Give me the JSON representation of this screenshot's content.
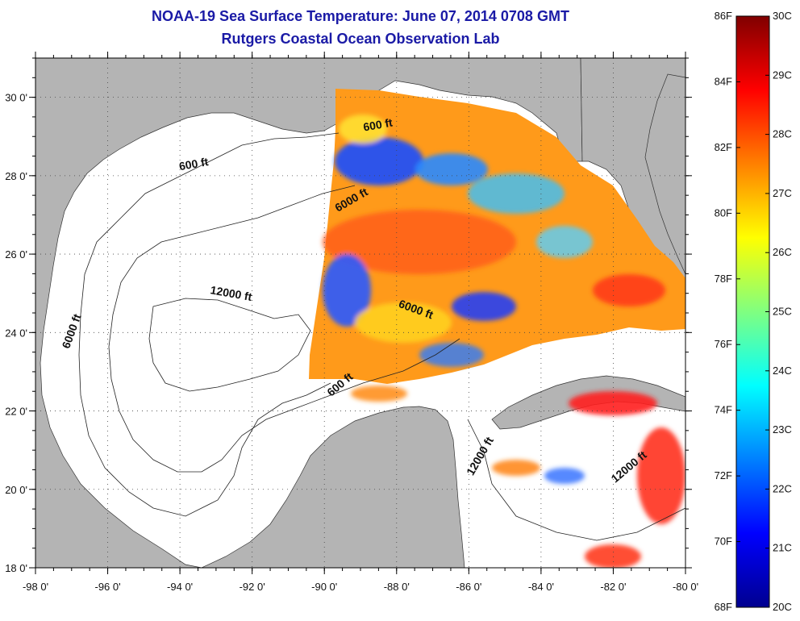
{
  "header": {
    "title": "NOAA-19 Sea Surface Temperature:  June 07, 2014 0708 GMT",
    "subtitle": "Rutgers Coastal Ocean Observation Lab"
  },
  "map": {
    "lon_range": [
      -98,
      -80
    ],
    "lat_range": [
      18,
      31
    ],
    "lon_ticks": [
      "-98 0'",
      "-96 0'",
      "-94 0'",
      "-92 0'",
      "-90 0'",
      "-88 0'",
      "-86 0'",
      "-84 0'",
      "-82 0'",
      "-80 0'"
    ],
    "lat_ticks": [
      "18 0'",
      "20 0'",
      "22 0'",
      "24 0'",
      "26 0'",
      "28 0'",
      "30 0'"
    ],
    "land_color": "#b4b4b4",
    "ocean_color": "#ffffff",
    "gridlines": "dotted",
    "contour_labels": [
      {
        "text": "600 ft",
        "lon": -93.6,
        "lat": 28.2
      },
      {
        "text": "6000 ft",
        "lon": -89.2,
        "lat": 27.3
      },
      {
        "text": "600 ft",
        "lon": -88.5,
        "lat": 29.2
      },
      {
        "text": "12000 ft",
        "lon": -92.6,
        "lat": 24.9
      },
      {
        "text": "6000 ft",
        "lon": -96.9,
        "lat": 24.0
      },
      {
        "text": "6000 ft",
        "lon": -87.5,
        "lat": 24.5
      },
      {
        "text": "600 ft",
        "lon": -89.5,
        "lat": 22.6
      },
      {
        "text": "12000 ft",
        "lon": -85.6,
        "lat": 20.8
      },
      {
        "text": "12000 ft",
        "lon": -81.5,
        "lat": 20.5
      }
    ]
  },
  "colorbar": {
    "labels_f": [
      "86F",
      "84F",
      "82F",
      "80F",
      "78F",
      "76F",
      "74F",
      "72F",
      "70F",
      "68F"
    ],
    "labels_c": [
      "30C",
      "29C",
      "28C",
      "27C",
      "26C",
      "25C",
      "24C",
      "23C",
      "22C",
      "21C",
      "20C"
    ],
    "range_c": [
      20,
      30
    ],
    "colors": [
      "#00008f",
      "#0000ff",
      "#0080ff",
      "#00ffff",
      "#80ff80",
      "#ffff00",
      "#ff8000",
      "#ff0000",
      "#800000"
    ]
  }
}
